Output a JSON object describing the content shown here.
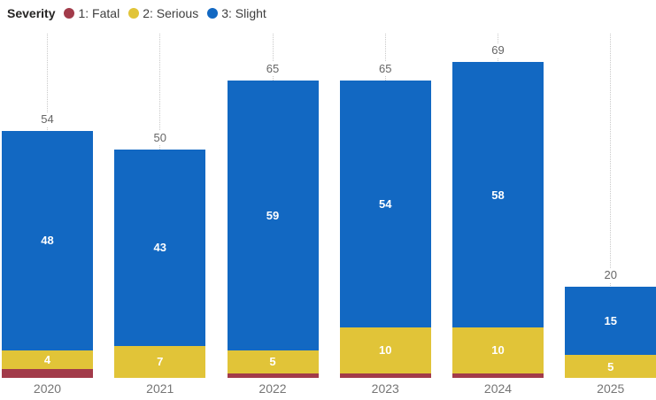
{
  "legend": {
    "title": "Severity",
    "items": [
      {
        "label": "1: Fatal",
        "color": "#A23B4A"
      },
      {
        "label": "2: Serious",
        "color": "#E1C438"
      },
      {
        "label": "3: Slight",
        "color": "#1268C2"
      }
    ]
  },
  "chart_data": {
    "type": "bar",
    "stacked": true,
    "title": "Severity",
    "xlabel": "",
    "ylabel": "",
    "categories": [
      "2020",
      "2021",
      "2022",
      "2023",
      "2024",
      "2025"
    ],
    "series": [
      {
        "name": "1: Fatal",
        "color": "#A23B4A",
        "values": [
          2,
          0,
          1,
          1,
          1,
          0
        ]
      },
      {
        "name": "2: Serious",
        "color": "#E1C438",
        "values": [
          4,
          7,
          5,
          10,
          10,
          5
        ]
      },
      {
        "name": "3: Slight",
        "color": "#1268C2",
        "values": [
          48,
          43,
          59,
          54,
          58,
          15
        ]
      }
    ],
    "totals": [
      54,
      50,
      65,
      65,
      69,
      20
    ],
    "segment_labels_visible": [
      [
        null,
        4,
        48
      ],
      [
        null,
        7,
        43
      ],
      [
        null,
        5,
        59
      ],
      [
        null,
        10,
        54
      ],
      [
        null,
        10,
        58
      ],
      [
        null,
        5,
        15
      ]
    ],
    "ylim": [
      0,
      75
    ],
    "grid": "dotted vertical line at each category center",
    "legend_position": "top-left",
    "colors": {
      "background": "#FFFFFF",
      "total_label": "#666666",
      "axis_label": "#757575",
      "grid_line": "#C9C9C9",
      "segment_label": "#FFFFFF",
      "legend_title": "#252423",
      "legend_text": "#3F3F3F"
    }
  }
}
